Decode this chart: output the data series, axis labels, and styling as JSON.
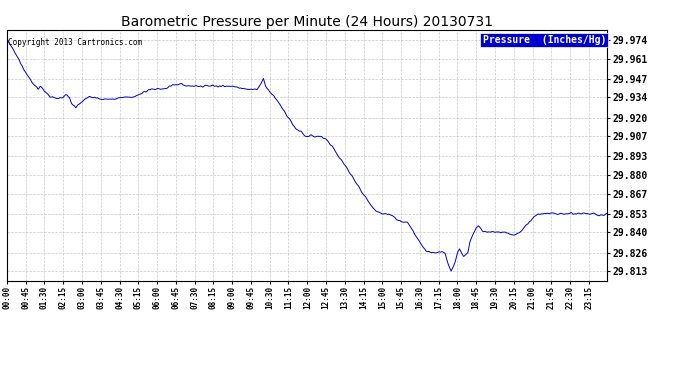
{
  "title": "Barometric Pressure per Minute (24 Hours) 20130731",
  "copyright": "Copyright 2013 Cartronics.com",
  "legend_label": "Pressure  (Inches/Hg)",
  "yticks": [
    29.813,
    29.826,
    29.84,
    29.853,
    29.867,
    29.88,
    29.893,
    29.907,
    29.92,
    29.934,
    29.947,
    29.961,
    29.974
  ],
  "ylim": [
    29.806,
    29.981
  ],
  "line_color": "#0000cc",
  "bg_color": "#ffffff",
  "grid_color": "#bbbbbb",
  "title_color": "#000000",
  "copyright_color": "#000000",
  "legend_bg": "#0000cc",
  "legend_text_color": "#ffffff",
  "total_minutes": 1440,
  "figwidth": 6.9,
  "figheight": 3.75,
  "dpi": 100
}
